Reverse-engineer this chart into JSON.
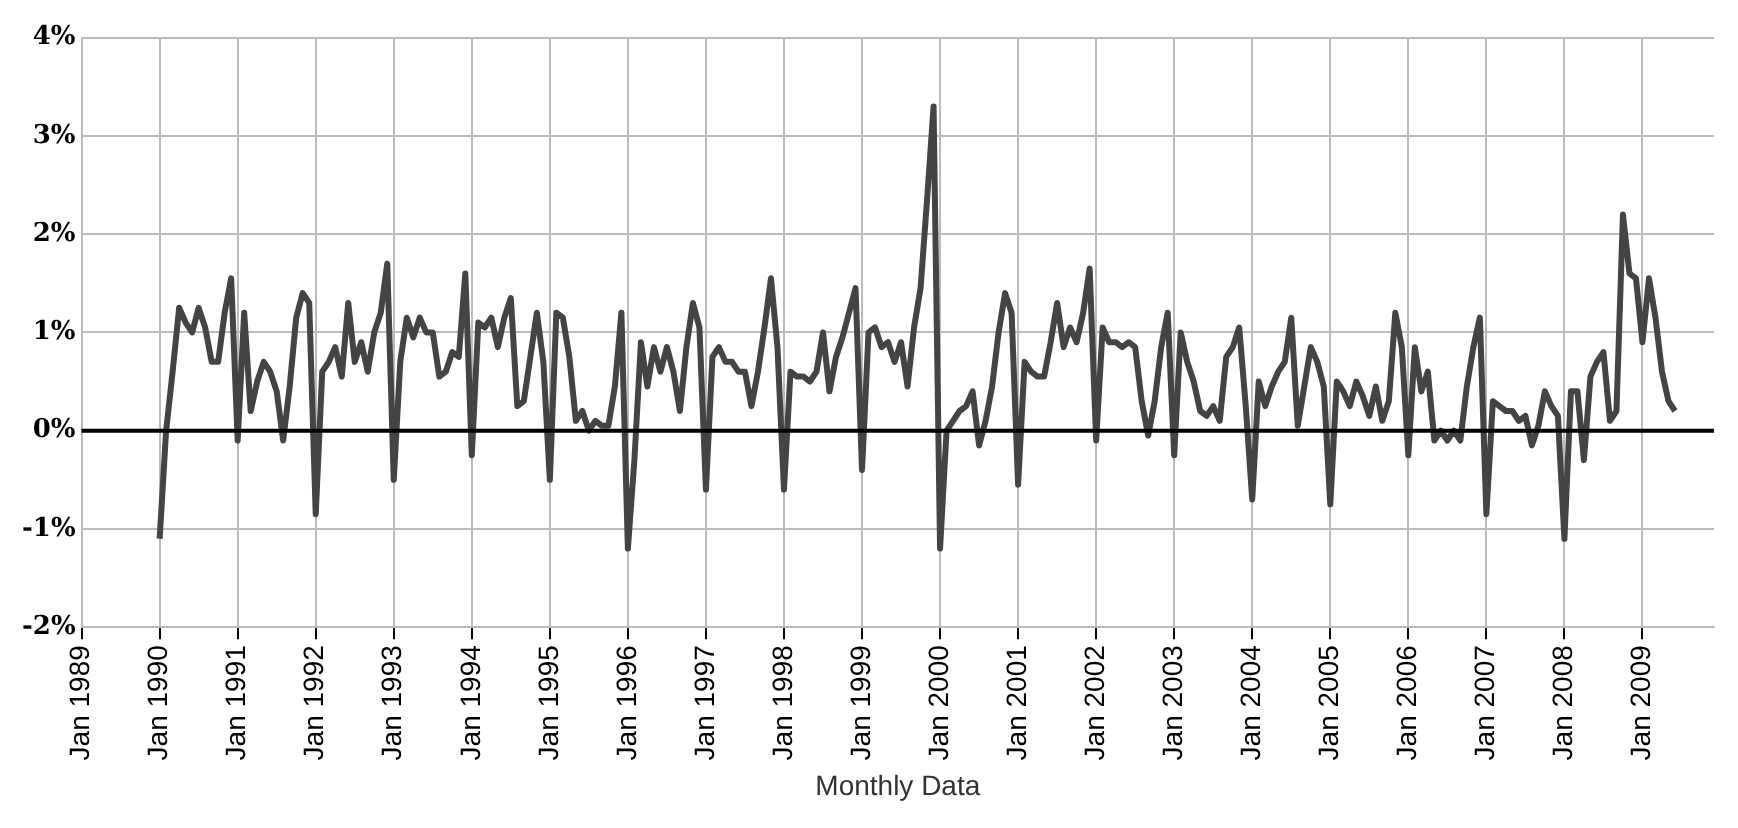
{
  "chart_data": {
    "type": "line",
    "xlabel": "Monthly Data",
    "x": [
      "1990-01",
      "1990-02",
      "1990-03",
      "1990-04",
      "1990-05",
      "1990-06",
      "1990-07",
      "1990-08",
      "1990-09",
      "1990-10",
      "1990-11",
      "1990-12",
      "1991-01",
      "1991-02",
      "1991-03",
      "1991-04",
      "1991-05",
      "1991-06",
      "1991-07",
      "1991-08",
      "1991-09",
      "1991-10",
      "1991-11",
      "1991-12",
      "1992-01",
      "1992-02",
      "1992-03",
      "1992-04",
      "1992-05",
      "1992-06",
      "1992-07",
      "1992-08",
      "1992-09",
      "1992-10",
      "1992-11",
      "1992-12",
      "1993-01",
      "1993-02",
      "1993-03",
      "1993-04",
      "1993-05",
      "1993-06",
      "1993-07",
      "1993-08",
      "1993-09",
      "1993-10",
      "1993-11",
      "1993-12",
      "1994-01",
      "1994-02",
      "1994-03",
      "1994-04",
      "1994-05",
      "1994-06",
      "1994-07",
      "1994-08",
      "1994-09",
      "1994-10",
      "1994-11",
      "1994-12",
      "1995-01",
      "1995-02",
      "1995-03",
      "1995-04",
      "1995-05",
      "1995-06",
      "1995-07",
      "1995-08",
      "1995-09",
      "1995-10",
      "1995-11",
      "1995-12",
      "1996-01",
      "1996-02",
      "1996-03",
      "1996-04",
      "1996-05",
      "1996-06",
      "1996-07",
      "1996-08",
      "1996-09",
      "1996-10",
      "1996-11",
      "1996-12",
      "1997-01",
      "1997-02",
      "1997-03",
      "1997-04",
      "1997-05",
      "1997-06",
      "1997-07",
      "1997-08",
      "1997-09",
      "1997-10",
      "1997-11",
      "1997-12",
      "1998-01",
      "1998-02",
      "1998-03",
      "1998-04",
      "1998-05",
      "1998-06",
      "1998-07",
      "1998-08",
      "1998-09",
      "1998-10",
      "1998-11",
      "1998-12",
      "1999-01",
      "1999-02",
      "1999-03",
      "1999-04",
      "1999-05",
      "1999-06",
      "1999-07",
      "1999-08",
      "1999-09",
      "1999-10",
      "1999-11",
      "1999-12",
      "2000-01",
      "2000-02",
      "2000-03",
      "2000-04",
      "2000-05",
      "2000-06",
      "2000-07",
      "2000-08",
      "2000-09",
      "2000-10",
      "2000-11",
      "2000-12",
      "2001-01",
      "2001-02",
      "2001-03",
      "2001-04",
      "2001-05",
      "2001-06",
      "2001-07",
      "2001-08",
      "2001-09",
      "2001-10",
      "2001-11",
      "2001-12",
      "2002-01",
      "2002-02",
      "2002-03",
      "2002-04",
      "2002-05",
      "2002-06",
      "2002-07",
      "2002-08",
      "2002-09",
      "2002-10",
      "2002-11",
      "2002-12",
      "2003-01",
      "2003-02",
      "2003-03",
      "2003-04",
      "2003-05",
      "2003-06",
      "2003-07",
      "2003-08",
      "2003-09",
      "2003-10",
      "2003-11",
      "2003-12",
      "2004-01",
      "2004-02",
      "2004-03",
      "2004-04",
      "2004-05",
      "2004-06",
      "2004-07",
      "2004-08",
      "2004-09",
      "2004-10",
      "2004-11",
      "2004-12",
      "2005-01",
      "2005-02",
      "2005-03",
      "2005-04",
      "2005-05",
      "2005-06",
      "2005-07",
      "2005-08",
      "2005-09",
      "2005-10",
      "2005-11",
      "2005-12",
      "2006-01",
      "2006-02",
      "2006-03",
      "2006-04",
      "2006-05",
      "2006-06",
      "2006-07",
      "2006-08",
      "2006-09",
      "2006-10",
      "2006-11",
      "2006-12",
      "2007-01",
      "2007-02",
      "2007-03",
      "2007-04",
      "2007-05",
      "2007-06",
      "2007-07",
      "2007-08",
      "2007-09",
      "2007-10",
      "2007-11",
      "2007-12",
      "2008-01",
      "2008-02",
      "2008-03",
      "2008-04",
      "2008-05",
      "2008-06",
      "2008-07",
      "2008-08",
      "2008-09",
      "2008-10",
      "2008-11",
      "2008-12",
      "2009-01",
      "2009-02",
      "2009-03",
      "2009-04",
      "2009-05",
      "2009-06"
    ],
    "series": [
      {
        "color": "#444444",
        "values": [
          -1.1,
          0.0,
          0.6,
          1.25,
          1.1,
          1.0,
          1.25,
          1.05,
          0.7,
          0.7,
          1.2,
          1.55,
          -0.1,
          1.2,
          0.2,
          0.5,
          0.7,
          0.6,
          0.4,
          -0.1,
          0.45,
          1.15,
          1.4,
          1.3,
          -0.85,
          0.6,
          0.7,
          0.85,
          0.55,
          1.3,
          0.7,
          0.9,
          0.6,
          1.0,
          1.2,
          1.7,
          -0.5,
          0.7,
          1.15,
          0.95,
          1.15,
          1.0,
          1.0,
          0.55,
          0.6,
          0.8,
          0.75,
          1.6,
          -0.25,
          1.1,
          1.05,
          1.15,
          0.85,
          1.15,
          1.35,
          0.25,
          0.3,
          0.75,
          1.2,
          0.7,
          -0.5,
          1.2,
          1.15,
          0.75,
          0.1,
          0.2,
          0.0,
          0.1,
          0.05,
          0.05,
          0.45,
          1.2,
          -1.2,
          -0.3,
          0.9,
          0.45,
          0.85,
          0.6,
          0.85,
          0.6,
          0.2,
          0.85,
          1.3,
          1.05,
          -0.6,
          0.75,
          0.85,
          0.7,
          0.7,
          0.6,
          0.6,
          0.25,
          0.6,
          1.05,
          1.55,
          0.85,
          -0.6,
          0.6,
          0.55,
          0.55,
          0.5,
          0.6,
          1.0,
          0.4,
          0.75,
          0.95,
          1.2,
          1.45,
          -0.4,
          1.0,
          1.05,
          0.85,
          0.9,
          0.7,
          0.9,
          0.45,
          1.05,
          1.45,
          2.35,
          3.3,
          -1.2,
          0.0,
          0.1,
          0.2,
          0.25,
          0.4,
          -0.15,
          0.1,
          0.45,
          1.0,
          1.4,
          1.2,
          -0.55,
          0.7,
          0.6,
          0.55,
          0.55,
          0.9,
          1.3,
          0.85,
          1.05,
          0.9,
          1.2,
          1.65,
          -0.1,
          1.05,
          0.9,
          0.9,
          0.85,
          0.9,
          0.85,
          0.3,
          -0.05,
          0.3,
          0.85,
          1.2,
          -0.25,
          1.0,
          0.7,
          0.5,
          0.2,
          0.15,
          0.25,
          0.1,
          0.75,
          0.85,
          1.05,
          0.25,
          -0.7,
          0.5,
          0.25,
          0.45,
          0.6,
          0.7,
          1.15,
          0.05,
          0.45,
          0.85,
          0.7,
          0.45,
          -0.75,
          0.5,
          0.4,
          0.25,
          0.5,
          0.35,
          0.15,
          0.45,
          0.1,
          0.3,
          1.2,
          0.85,
          -0.25,
          0.85,
          0.4,
          0.6,
          -0.1,
          0.0,
          -0.1,
          0.0,
          -0.1,
          0.45,
          0.85,
          1.15,
          -0.85,
          0.3,
          0.25,
          0.2,
          0.2,
          0.1,
          0.15,
          -0.15,
          0.05,
          0.4,
          0.25,
          0.15,
          -1.1,
          0.4,
          0.4,
          -0.3,
          0.55,
          0.7,
          0.8,
          0.1,
          0.2,
          2.2,
          1.6,
          1.55,
          0.9,
          1.55,
          1.15,
          0.6,
          0.3,
          0.2
        ]
      }
    ],
    "xlim": [
      "1989-01",
      "2009-12"
    ],
    "xticks": [
      {
        "value": "1989-01",
        "label": "Jan 1989"
      },
      {
        "value": "1990-01",
        "label": "Jan 1990"
      },
      {
        "value": "1991-01",
        "label": "Jan 1991"
      },
      {
        "value": "1992-01",
        "label": "Jan 1992"
      },
      {
        "value": "1993-01",
        "label": "Jan 1993"
      },
      {
        "value": "1994-01",
        "label": "Jan 1994"
      },
      {
        "value": "1995-01",
        "label": "Jan 1995"
      },
      {
        "value": "1996-01",
        "label": "Jan 1996"
      },
      {
        "value": "1997-01",
        "label": "Jan 1997"
      },
      {
        "value": "1998-01",
        "label": "Jan 1998"
      },
      {
        "value": "1999-01",
        "label": "Jan 1999"
      },
      {
        "value": "2000-01",
        "label": "Jan 2000"
      },
      {
        "value": "2001-01",
        "label": "Jan 2001"
      },
      {
        "value": "2002-01",
        "label": "Jan 2002"
      },
      {
        "value": "2003-01",
        "label": "Jan 2003"
      },
      {
        "value": "2004-01",
        "label": "Jan 2004"
      },
      {
        "value": "2005-01",
        "label": "Jan 2005"
      },
      {
        "value": "2006-01",
        "label": "Jan 2006"
      },
      {
        "value": "2007-01",
        "label": "Jan 2007"
      },
      {
        "value": "2008-01",
        "label": "Jan 2008"
      },
      {
        "value": "2009-01",
        "label": "Jan 2009"
      }
    ],
    "ylim": [
      -2,
      4
    ],
    "yticks": [
      {
        "value": -2,
        "label": "-2%"
      },
      {
        "value": -1,
        "label": "-1%"
      },
      {
        "value": 0,
        "label": "0%"
      },
      {
        "value": 1,
        "label": "1%"
      },
      {
        "value": 2,
        "label": "2%"
      },
      {
        "value": 3,
        "label": "3%"
      },
      {
        "value": 4,
        "label": "4%"
      }
    ],
    "ref_lines": [
      {
        "axis": "y",
        "value": 0,
        "color": "#000000"
      }
    ],
    "grid": true,
    "legend": false,
    "marker": "none",
    "line_style": "solid"
  }
}
